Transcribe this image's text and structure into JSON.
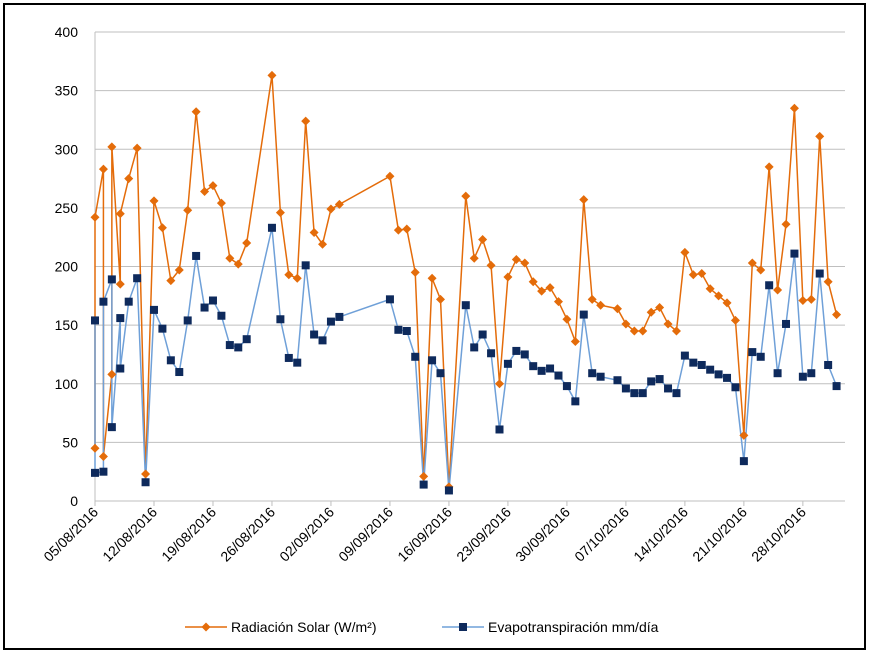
{
  "chart_data": {
    "type": "line",
    "x": [
      "2016-08-05",
      "2016-08-05",
      "2016-08-06",
      "2016-08-06",
      "2016-08-07",
      "2016-08-07",
      "2016-08-08",
      "2016-08-08",
      "2016-08-09",
      "2016-08-10",
      "2016-08-11",
      "2016-08-12",
      "2016-08-13",
      "2016-08-14",
      "2016-08-15",
      "2016-08-16",
      "2016-08-17",
      "2016-08-18",
      "2016-08-19",
      "2016-08-20",
      "2016-08-21",
      "2016-08-22",
      "2016-08-23",
      "2016-08-26",
      "2016-08-27",
      "2016-08-28",
      "2016-08-29",
      "2016-08-30",
      "2016-08-31",
      "2016-09-01",
      "2016-09-02",
      "2016-09-03",
      "2016-09-09",
      "2016-09-10",
      "2016-09-11",
      "2016-09-12",
      "2016-09-13",
      "2016-09-14",
      "2016-09-15",
      "2016-09-16",
      "2016-09-18",
      "2016-09-19",
      "2016-09-20",
      "2016-09-21",
      "2016-09-22",
      "2016-09-23",
      "2016-09-24",
      "2016-09-25",
      "2016-09-26",
      "2016-09-27",
      "2016-09-28",
      "2016-09-29",
      "2016-09-30",
      "2016-10-01",
      "2016-10-02",
      "2016-10-03",
      "2016-10-04",
      "2016-10-06",
      "2016-10-07",
      "2016-10-08",
      "2016-10-09",
      "2016-10-10",
      "2016-10-11",
      "2016-10-12",
      "2016-10-13",
      "2016-10-14",
      "2016-10-15",
      "2016-10-16",
      "2016-10-17",
      "2016-10-18",
      "2016-10-19",
      "2016-10-20",
      "2016-10-21",
      "2016-10-22",
      "2016-10-23",
      "2016-10-24",
      "2016-10-25",
      "2016-10-26",
      "2016-10-27",
      "2016-10-28",
      "2016-10-29",
      "2016-10-30",
      "2016-10-31",
      "2016-11-01"
    ],
    "series": [
      {
        "name": "Radiación Solar (W/m²)",
        "color": "#e46c0a",
        "marker": "diamond",
        "marker_color": "#e46c0a",
        "values": [
          45,
          242,
          283,
          38,
          108,
          302,
          185,
          245,
          275,
          301,
          23,
          256,
          233,
          188,
          197,
          248,
          332,
          264,
          269,
          254,
          207,
          202,
          220,
          363,
          246,
          193,
          190,
          324,
          229,
          219,
          249,
          253,
          277,
          231,
          232,
          195,
          21,
          190,
          172,
          12,
          260,
          207,
          223,
          201,
          100,
          191,
          206,
          203,
          187,
          179,
          182,
          170,
          155,
          136,
          257,
          172,
          167,
          164,
          151,
          145,
          145,
          161,
          165,
          151,
          145,
          212,
          193,
          194,
          181,
          175,
          169,
          154,
          56,
          203,
          197,
          285,
          180,
          236,
          335,
          171,
          172,
          311,
          187,
          159
        ]
      },
      {
        "name": "Evapotranspiración mm/día",
        "color": "#6fa0d8",
        "marker": "square",
        "marker_color": "#0e2a5c",
        "values": [
          154,
          24,
          25,
          170,
          189,
          63,
          156,
          113,
          170,
          190,
          16,
          163,
          147,
          120,
          110,
          154,
          209,
          165,
          171,
          158,
          133,
          131,
          138,
          233,
          155,
          122,
          118,
          201,
          142,
          137,
          153,
          157,
          172,
          146,
          145,
          123,
          14,
          120,
          109,
          9,
          167,
          131,
          142,
          126,
          61,
          117,
          128,
          125,
          115,
          111,
          113,
          107,
          98,
          85,
          159,
          109,
          106,
          103,
          96,
          92,
          92,
          102,
          104,
          96,
          92,
          124,
          118,
          116,
          112,
          108,
          105,
          97,
          34,
          127,
          123,
          184,
          109,
          151,
          211,
          106,
          109,
          194,
          116,
          98
        ]
      }
    ],
    "xlim": [
      "2016-08-05",
      "2016-11-02"
    ],
    "xticks": [
      {
        "value": "2016-08-05",
        "label": "05/08/2016"
      },
      {
        "value": "2016-08-12",
        "label": "12/08/2016"
      },
      {
        "value": "2016-08-19",
        "label": "19/08/2016"
      },
      {
        "value": "2016-08-26",
        "label": "26/08/2016"
      },
      {
        "value": "2016-09-02",
        "label": "02/09/2016"
      },
      {
        "value": "2016-09-09",
        "label": "09/09/2016"
      },
      {
        "value": "2016-09-16",
        "label": "16/09/2016"
      },
      {
        "value": "2016-09-23",
        "label": "23/09/2016"
      },
      {
        "value": "2016-09-30",
        "label": "30/09/2016"
      },
      {
        "value": "2016-10-07",
        "label": "07/10/2016"
      },
      {
        "value": "2016-10-14",
        "label": "14/10/2016"
      },
      {
        "value": "2016-10-21",
        "label": "21/10/2016"
      },
      {
        "value": "2016-10-28",
        "label": "28/10/2016"
      }
    ],
    "ylim": [
      0,
      400
    ],
    "yticks": [
      0,
      50,
      100,
      150,
      200,
      250,
      300,
      350,
      400
    ],
    "grid": true,
    "legend": "bottom"
  }
}
